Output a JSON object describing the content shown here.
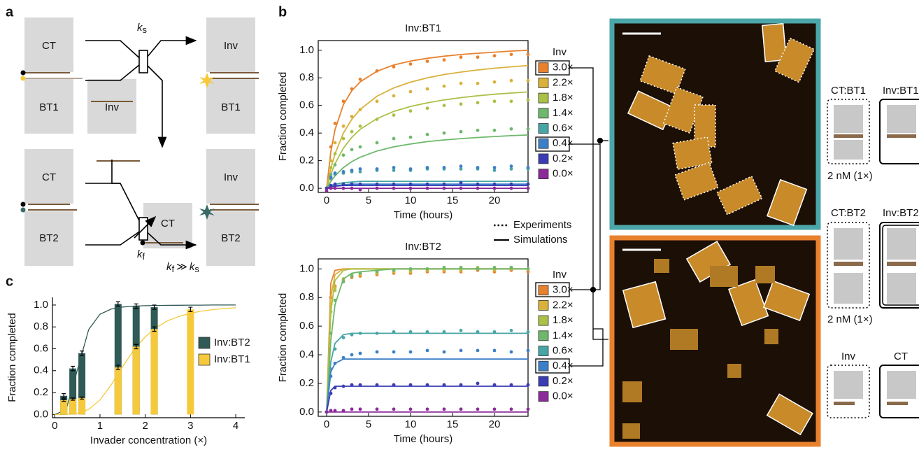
{
  "panel_labels": [
    "a",
    "b",
    "c"
  ],
  "diagram": {
    "labels": [
      "CT",
      "BT1",
      "Inv",
      "Inv",
      "BT1",
      "CT",
      "BT2",
      "CT",
      "Inv",
      "BT2"
    ],
    "rate_slow": {
      "symbol": "k",
      "subscript": "s"
    },
    "rate_fast": {
      "symbol": "k",
      "subscript": "f"
    },
    "relation": {
      "left": "k",
      "left_sub": "f",
      "op": "≫",
      "right": "k",
      "right_sub": "s"
    }
  },
  "key": {
    "experiments": "Experiments",
    "simulations": "Simulations"
  },
  "schematics": {
    "labels": [
      "CT:BT1",
      "Inv:BT1",
      "2 nM (1×)",
      "CT:BT2",
      "Inv:BT2",
      "2 nM (1×)",
      "Inv",
      "CT"
    ]
  },
  "chart_data": [
    {
      "type": "line",
      "title": "Inv:BT1",
      "xlabel": "Time (hours)",
      "ylabel": "Fraction completed",
      "legend_title": "Inv",
      "x": [
        0,
        0.5,
        1,
        2,
        3,
        4,
        6,
        8,
        10,
        12,
        14,
        16,
        18,
        20,
        22,
        24
      ],
      "xlim": [
        -1,
        24
      ],
      "ylim": [
        -0.03,
        1.07
      ],
      "xticks": [
        0,
        5,
        10,
        15,
        20
      ],
      "yticks": [
        {
          "value": 0,
          "label": "0.0"
        },
        {
          "value": 0.2,
          "label": "0.2"
        },
        {
          "value": 0.4,
          "label": "0.4"
        },
        {
          "value": 0.6,
          "label": "0.6"
        },
        {
          "value": 0.8,
          "label": "0.8"
        },
        {
          "value": 1,
          "label": "1.0"
        }
      ],
      "series": [
        {
          "name": "3.0×",
          "color": "#e8812e",
          "simulation": [
            0,
            0.265,
            0.424,
            0.606,
            0.707,
            0.771,
            0.848,
            0.893,
            0.922,
            0.942,
            0.957,
            0.969,
            0.978,
            0.986,
            0.994,
            1.0
          ],
          "experiment": [
            0,
            0.3,
            0.47,
            0.63,
            0.72,
            0.79,
            0.85,
            0.88,
            0.9,
            0.92,
            0.93,
            0.95,
            0.95,
            0.96,
            0.97,
            0.97
          ]
        },
        {
          "name": "2.2×",
          "color": "#d9b13b",
          "simulation": [
            0,
            0.143,
            0.25,
            0.4,
            0.5,
            0.571,
            0.667,
            0.727,
            0.769,
            0.8,
            0.824,
            0.842,
            0.857,
            0.87,
            0.88,
            0.889
          ],
          "experiment": [
            0,
            0.2,
            0.33,
            0.45,
            0.52,
            0.57,
            0.63,
            0.67,
            0.7,
            0.72,
            0.74,
            0.76,
            0.76,
            0.77,
            0.78,
            0.78
          ]
        },
        {
          "name": "1.8×",
          "color": "#a9c146",
          "simulation": [
            0,
            0.1,
            0.178,
            0.291,
            0.369,
            0.427,
            0.505,
            0.557,
            0.593,
            0.619,
            0.64,
            0.657,
            0.67,
            0.681,
            0.69,
            0.698
          ],
          "experiment": [
            0,
            0.15,
            0.25,
            0.36,
            0.41,
            0.45,
            0.5,
            0.53,
            0.56,
            0.58,
            0.6,
            0.61,
            0.62,
            0.63,
            0.63,
            0.64
          ]
        },
        {
          "name": "1.4×",
          "color": "#6db86c",
          "simulation": [
            0,
            0.05,
            0.09,
            0.15,
            0.193,
            0.225,
            0.27,
            0.3,
            0.321,
            0.338,
            0.35,
            0.36,
            0.368,
            0.375,
            0.381,
            0.386
          ],
          "experiment": [
            0,
            0.1,
            0.17,
            0.24,
            0.28,
            0.3,
            0.33,
            0.36,
            0.37,
            0.39,
            0.4,
            0.41,
            0.42,
            0.42,
            0.43,
            0.43
          ]
        },
        {
          "name": "0.6×",
          "color": "#48a5a6",
          "simulation": [
            0,
            0.02,
            0.03,
            0.04,
            0.045,
            0.05,
            0.05,
            0.05,
            0.05,
            0.05,
            0.05,
            0.05,
            0.05,
            0.05,
            0.05,
            0.05
          ],
          "experiment": [
            0,
            0.07,
            0.1,
            0.11,
            0.12,
            0.12,
            0.13,
            0.13,
            0.13,
            0.14,
            0.14,
            0.14,
            0.14,
            0.13,
            0.14,
            0.14
          ]
        },
        {
          "name": "0.4×",
          "color": "#3c7fc8",
          "simulation": [
            0,
            0.015,
            0.02,
            0.025,
            0.03,
            0.03,
            0.03,
            0.03,
            0.03,
            0.03,
            0.03,
            0.03,
            0.03,
            0.03,
            0.03,
            0.03
          ],
          "experiment": [
            0,
            0.08,
            0.11,
            0.12,
            0.13,
            0.14,
            0.14,
            0.15,
            0.14,
            0.15,
            0.15,
            0.16,
            0.15,
            0.15,
            0.16,
            0.15
          ]
        },
        {
          "name": "0.2×",
          "color": "#3a3cb4",
          "simulation": [
            0,
            0.01,
            0.015,
            0.02,
            0.02,
            0.02,
            0.02,
            0.02,
            0.02,
            0.02,
            0.02,
            0.02,
            0.02,
            0.02,
            0.02,
            0.02
          ],
          "experiment": [
            0,
            0.02,
            0.03,
            0.03,
            0.03,
            0.03,
            0.03,
            0.03,
            0.03,
            0.03,
            0.03,
            0.04,
            0.03,
            0.03,
            0.03,
            0.03
          ]
        },
        {
          "name": "0.0×",
          "color": "#8b2a99",
          "simulation": [
            0,
            0,
            0,
            0,
            0,
            0,
            0,
            0,
            0,
            0,
            0,
            0,
            0,
            0,
            0,
            0
          ],
          "experiment": [
            -0.02,
            0,
            0,
            0,
            0,
            -0.01,
            0,
            0,
            0,
            0,
            0,
            0,
            0,
            0,
            0,
            0
          ]
        }
      ]
    },
    {
      "type": "line",
      "title": "Inv:BT2",
      "xlabel": "Time (hours)",
      "ylabel": "Fraction completed",
      "legend_title": "Inv",
      "x": [
        0,
        0.5,
        1,
        2,
        3,
        4,
        6,
        8,
        10,
        12,
        14,
        16,
        18,
        20,
        22,
        24
      ],
      "xlim": [
        -1,
        24
      ],
      "ylim": [
        -0.03,
        1.07
      ],
      "xticks": [
        0,
        5,
        10,
        15,
        20
      ],
      "yticks": [
        {
          "value": 0,
          "label": "0.0"
        },
        {
          "value": 0.2,
          "label": "0.2"
        },
        {
          "value": 0.4,
          "label": "0.4"
        },
        {
          "value": 0.6,
          "label": "0.6"
        },
        {
          "value": 0.8,
          "label": "0.8"
        },
        {
          "value": 1,
          "label": "1.0"
        }
      ],
      "series": [
        {
          "name": "3.0×",
          "color": "#e8812e",
          "simulation": [
            0,
            0.9,
            0.99,
            1,
            1,
            1,
            1,
            1,
            1,
            1,
            1,
            1,
            1,
            1,
            1,
            1
          ],
          "experiment": [
            0,
            0.8,
            0.88,
            0.92,
            0.94,
            0.95,
            0.96,
            0.97,
            0.97,
            0.98,
            0.98,
            0.98,
            0.99,
            0.98,
            0.99,
            0.98
          ]
        },
        {
          "name": "2.2×",
          "color": "#d9b13b",
          "simulation": [
            0,
            0.8,
            0.96,
            1,
            1,
            1,
            1,
            1,
            1,
            1,
            1,
            1,
            1,
            1,
            1,
            1
          ],
          "experiment": [
            0,
            0.76,
            0.87,
            0.93,
            0.95,
            0.96,
            0.97,
            0.98,
            0.98,
            0.99,
            0.99,
            0.99,
            1.0,
            0.99,
            1.0,
            1.0
          ]
        },
        {
          "name": "1.8×",
          "color": "#a9c146",
          "simulation": [
            0,
            0.7,
            0.92,
            0.99,
            1,
            1,
            1,
            1,
            1,
            1,
            1,
            1,
            1,
            1,
            1,
            1
          ],
          "experiment": [
            0,
            0.7,
            0.85,
            0.93,
            0.96,
            0.97,
            0.98,
            0.99,
            0.99,
            1.0,
            1.0,
            1.0,
            1.01,
            1.0,
            1.01,
            1.0
          ]
        },
        {
          "name": "1.4×",
          "color": "#6db86c",
          "simulation": [
            0,
            0.5,
            0.75,
            0.93,
            0.97,
            0.98,
            0.99,
            1,
            1,
            1,
            1,
            1,
            1,
            1,
            1,
            1
          ],
          "experiment": [
            0,
            0.55,
            0.78,
            0.91,
            0.95,
            0.97,
            0.98,
            0.99,
            1.0,
            1.0,
            1.01,
            1.01,
            1.0,
            1.01,
            1.01,
            1.0
          ]
        },
        {
          "name": "0.6×",
          "color": "#48a5a6",
          "simulation": [
            0,
            0.35,
            0.48,
            0.54,
            0.55,
            0.55,
            0.55,
            0.55,
            0.55,
            0.55,
            0.55,
            0.55,
            0.55,
            0.55,
            0.55,
            0.55
          ],
          "experiment": [
            0,
            0.3,
            0.44,
            0.52,
            0.54,
            0.55,
            0.55,
            0.56,
            0.56,
            0.56,
            0.56,
            0.57,
            0.56,
            0.56,
            0.57,
            0.56
          ]
        },
        {
          "name": "0.4×",
          "color": "#3c7fc8",
          "simulation": [
            0,
            0.28,
            0.34,
            0.37,
            0.37,
            0.37,
            0.37,
            0.37,
            0.37,
            0.37,
            0.37,
            0.37,
            0.37,
            0.37,
            0.37,
            0.37
          ],
          "experiment": [
            0,
            0.25,
            0.34,
            0.38,
            0.4,
            0.41,
            0.42,
            0.42,
            0.42,
            0.43,
            0.42,
            0.43,
            0.43,
            0.43,
            0.42,
            0.43
          ]
        },
        {
          "name": "0.2×",
          "color": "#3a3cb4",
          "simulation": [
            0,
            0.15,
            0.18,
            0.18,
            0.18,
            0.18,
            0.18,
            0.18,
            0.18,
            0.18,
            0.18,
            0.18,
            0.18,
            0.18,
            0.18,
            0.18
          ],
          "experiment": [
            0,
            0.13,
            0.17,
            0.18,
            0.19,
            0.19,
            0.19,
            0.19,
            0.19,
            0.19,
            0.19,
            0.19,
            0.2,
            0.19,
            0.19,
            0.19
          ]
        },
        {
          "name": "0.0×",
          "color": "#8b2a99",
          "simulation": [
            0,
            0,
            0,
            0,
            0,
            0,
            0,
            0,
            0,
            0,
            0,
            0,
            0,
            0,
            0,
            0
          ],
          "experiment": [
            0,
            0.01,
            0.01,
            0.01,
            0.02,
            0.02,
            0.02,
            0.02,
            0.02,
            0.02,
            0.02,
            0.02,
            0.02,
            0.02,
            0.02,
            0.02
          ]
        }
      ]
    },
    {
      "type": "bar",
      "xlabel": "Invader concentration (×)",
      "ylabel": "Fraction completed",
      "legend": "right",
      "x": [
        0.2,
        0.4,
        0.6,
        1.4,
        1.8,
        2.2,
        3.0
      ],
      "fit_x": [
        0,
        0.25,
        0.5,
        0.75,
        1,
        1.25,
        1.5,
        1.75,
        2,
        2.25,
        2.5,
        2.75,
        3,
        3.25,
        3.5,
        3.75,
        4
      ],
      "xlim": [
        -0.05,
        4.2
      ],
      "ylim": [
        -0.03,
        1.07
      ],
      "xticks": [
        0,
        1,
        2,
        3,
        4
      ],
      "yticks": [
        {
          "value": 0,
          "label": "0.0"
        },
        {
          "value": 0.2,
          "label": "0.2"
        },
        {
          "value": 0.4,
          "label": "0.4"
        },
        {
          "value": 0.6,
          "label": "0.6"
        },
        {
          "value": 0.8,
          "label": "0.8"
        },
        {
          "value": 1,
          "label": "1.0"
        }
      ],
      "series": [
        {
          "name": "Inv:BT2",
          "color": "#2f5a55",
          "values": [
            0.17,
            0.42,
            0.56,
            1.01,
            0.99,
            0.98,
            null
          ],
          "errors": [
            0.02,
            0.02,
            0.02,
            0.02,
            0.02,
            0.02,
            null
          ],
          "fit": [
            0,
            0.041,
            0.406,
            0.776,
            0.916,
            0.964,
            0.982,
            0.99,
            0.994,
            0.996,
            0.997,
            0.998,
            0.999,
            0.999,
            1,
            1,
            1
          ]
        },
        {
          "name": "Inv:BT1",
          "color": "#f6c93a",
          "values": [
            0.13,
            0.14,
            0.15,
            0.43,
            0.62,
            0.78,
            0.96
          ],
          "errors": [
            0.01,
            0.01,
            0.01,
            0.02,
            0.02,
            0.02,
            0.02
          ],
          "fit": [
            0,
            0.0006,
            0.0094,
            0.046,
            0.132,
            0.272,
            0.436,
            0.589,
            0.709,
            0.796,
            0.857,
            0.897,
            0.925,
            0.945,
            0.958,
            0.968,
            0.975
          ]
        }
      ]
    }
  ]
}
